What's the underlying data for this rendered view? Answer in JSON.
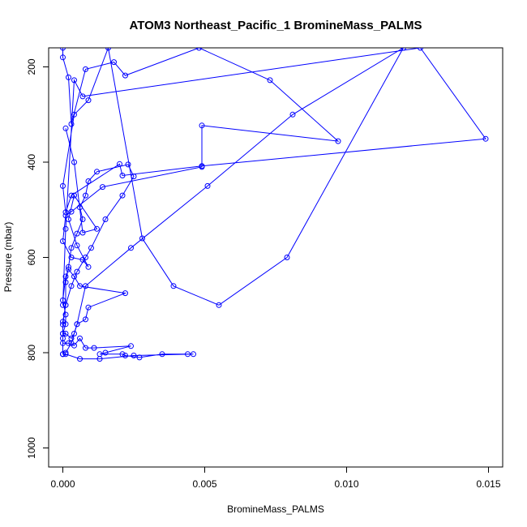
{
  "chart_data": {
    "type": "line",
    "title": "ATOM3 Northeast_Pacific_1 BromineMass_PALMS",
    "xlabel": "BromineMass_PALMS",
    "ylabel": "Pressure (mbar)",
    "xlim": [
      -0.0005,
      0.0155
    ],
    "ylim": [
      1040,
      160
    ],
    "y_reversed": true,
    "x_ticks": [
      0.0,
      0.005,
      0.01,
      0.015
    ],
    "x_tick_labels": [
      "0.000",
      "0.005",
      "0.010",
      "0.015"
    ],
    "y_ticks": [
      200,
      400,
      600,
      800,
      1000
    ],
    "y_tick_labels": [
      "200",
      "400",
      "600",
      "800",
      "1000"
    ],
    "grid": false,
    "color": "#0000ff",
    "series": [
      {
        "x": [
          0.0,
          0.0,
          0.0,
          0.0001,
          0.0001,
          0.0002,
          0.0003,
          0.0005,
          0.0007,
          0.0006,
          0.0008,
          0.0009,
          0.0012,
          0.0023,
          0.0025,
          0.0021,
          0.0015,
          0.001,
          0.0008,
          0.0005,
          0.0003,
          0.0001,
          0.0,
          0.0,
          0.0001,
          0.0003,
          0.0004,
          0.0005,
          0.0008,
          0.0009,
          0.0022,
          0.0006,
          0.0004,
          0.0002,
          0.0001,
          0.0,
          0.0001,
          0.0001,
          0.0,
          0.0,
          0.0002,
          0.0004,
          0.0006,
          0.0008,
          0.0011,
          0.0024,
          0.0015,
          0.0013,
          0.0021,
          0.0022,
          0.0027,
          0.0035,
          0.0044,
          0.0046,
          0.0025,
          0.0013,
          0.0006,
          0.0001,
          0.0,
          0.0
        ],
        "y": [
          803,
          770,
          741,
          700,
          652,
          620,
          580,
          550,
          520,
          495,
          470,
          440,
          420,
          405,
          430,
          470,
          520,
          580,
          600,
          630,
          660,
          700,
          735,
          760,
          760,
          770,
          760,
          740,
          730,
          705,
          675,
          660,
          640,
          625,
          640,
          690,
          720,
          740,
          760,
          780,
          780,
          785,
          770,
          790,
          790,
          786,
          800,
          803,
          803,
          806,
          810,
          803,
          803,
          803,
          806,
          813,
          813,
          803,
          803,
          803
        ]
      },
      {
        "x": [
          0.0,
          0.0,
          0.0002,
          0.0003,
          0.0008,
          0.0018,
          0.0022,
          0.0048,
          0.0073,
          0.0097,
          0.0049,
          0.0049,
          0.0014,
          0.0003,
          0.0001,
          0.0,
          0.0003,
          0.0007,
          0.0009,
          0.0005,
          0.0002,
          0.0004,
          0.0012,
          0.0007,
          0.0004,
          0.0001
        ],
        "y": [
          160,
          180,
          222,
          320,
          205,
          190,
          218,
          160,
          228,
          356,
          323,
          410,
          452,
          504,
          512,
          566,
          600,
          605,
          620,
          575,
          520,
          470,
          540,
          548,
          400,
          329
        ]
      },
      {
        "x": [
          0.0,
          0.0001,
          0.0004,
          0.0007,
          0.0126,
          0.0149,
          0.0049,
          0.0021,
          0.002,
          0.0003,
          0.0001,
          0.0,
          0.0004,
          0.0009,
          0.0016,
          0.0028,
          0.0039,
          0.0055,
          0.0079,
          0.012,
          0.0081,
          0.0051,
          0.0024,
          0.0008,
          0.0005,
          0.0003,
          0.0001
        ],
        "y": [
          700,
          540,
          228,
          262,
          160,
          351,
          408,
          428,
          404,
          470,
          505,
          450,
          300,
          270,
          160,
          560,
          660,
          700,
          600,
          160,
          300,
          450,
          580,
          660,
          740,
          780,
          800
        ]
      }
    ]
  }
}
